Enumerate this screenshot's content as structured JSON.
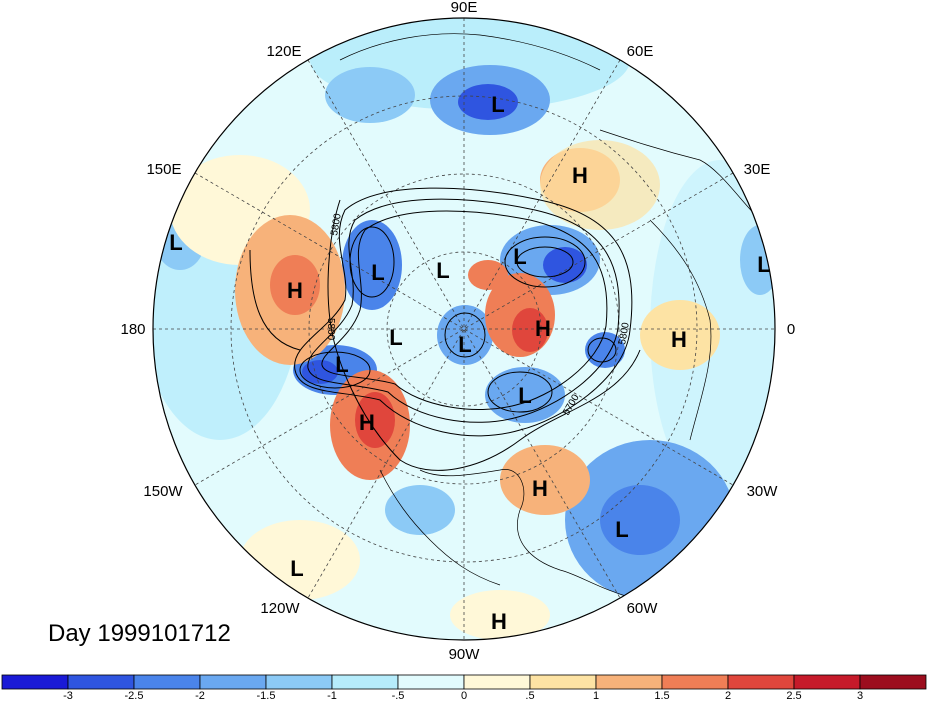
{
  "date_label": "Day 1999101712",
  "lon_labels": [
    "90E",
    "60E",
    "30E",
    "0",
    "30W",
    "60W",
    "90W",
    "120W",
    "150W",
    "180",
    "150E",
    "120E"
  ],
  "contour_labels": [
    "5800",
    "5800",
    "5700",
    "5800"
  ],
  "pressure_systems": [
    {
      "type": "L",
      "name": "low-1"
    },
    {
      "type": "L",
      "name": "low-2"
    },
    {
      "type": "L",
      "name": "low-3"
    },
    {
      "type": "L",
      "name": "low-4"
    },
    {
      "type": "L",
      "name": "low-5"
    },
    {
      "type": "L",
      "name": "low-6"
    },
    {
      "type": "L",
      "name": "low-7"
    },
    {
      "type": "L",
      "name": "low-8"
    },
    {
      "type": "L",
      "name": "low-9"
    },
    {
      "type": "L",
      "name": "low-10"
    },
    {
      "type": "L",
      "name": "low-11"
    },
    {
      "type": "L",
      "name": "low-12"
    },
    {
      "type": "H",
      "name": "high-1"
    },
    {
      "type": "H",
      "name": "high-2"
    },
    {
      "type": "H",
      "name": "high-3"
    },
    {
      "type": "H",
      "name": "high-4"
    },
    {
      "type": "H",
      "name": "high-5"
    },
    {
      "type": "H",
      "name": "high-6"
    },
    {
      "type": "H",
      "name": "high-7"
    }
  ],
  "colorbar": {
    "ticks": [
      "-3",
      "-2.5",
      "-2",
      "-1.5",
      "-1",
      "-.5",
      "0",
      ".5",
      "1",
      "1.5",
      "2",
      "2.5",
      "3"
    ],
    "colors": [
      "#1a1ad6",
      "#2f55e0",
      "#4a84ea",
      "#6aa8f0",
      "#8ccaf6",
      "#b6ecfb",
      "#e2fbfd",
      "#fff8d8",
      "#fde3a4",
      "#f7b27a",
      "#ef7e56",
      "#e0463c",
      "#c61a2a",
      "#9c0d1e"
    ]
  }
}
